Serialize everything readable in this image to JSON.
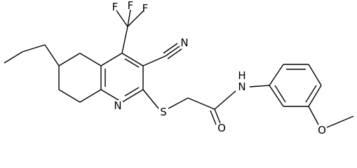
{
  "atoms": {
    "fluorine_1": "F",
    "fluorine_2": "F",
    "fluorine_3": "F",
    "nitrile_n": "N",
    "ring_n": "N",
    "sulfur": "S",
    "amide_n": "N",
    "amide_h": "H",
    "carbonyl_o": "O",
    "methoxy_o": "O"
  }
}
